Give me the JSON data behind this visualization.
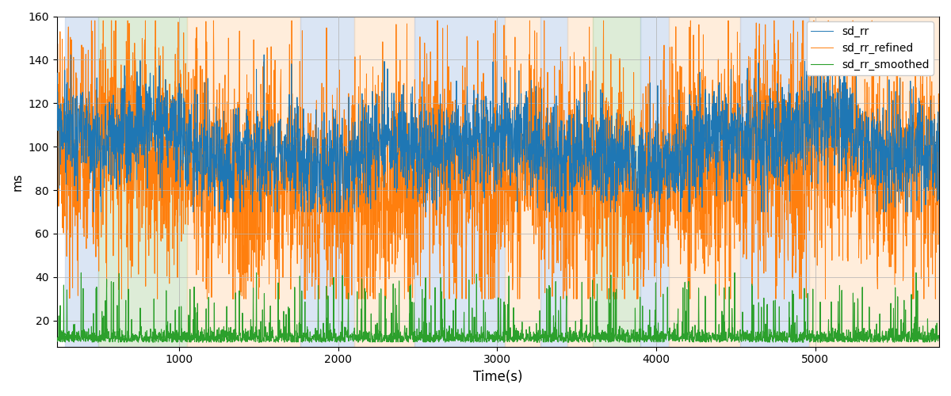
{
  "title": "",
  "xlabel": "Time(s)",
  "ylabel": "ms",
  "ylim": [
    8,
    160
  ],
  "xlim": [
    230,
    5780
  ],
  "line_colors": {
    "sd_rr": "#1f77b4",
    "sd_rr_refined": "#ff7f0e",
    "sd_rr_smoothed": "#2ca02c"
  },
  "legend_labels": [
    "sd_rr",
    "sd_rr_refined",
    "sd_rr_smoothed"
  ],
  "bg_regions": [
    {
      "xstart": 280,
      "xend": 490,
      "color": "#aec6e8"
    },
    {
      "xstart": 490,
      "xend": 1050,
      "color": "#b5d5a8"
    },
    {
      "xstart": 1050,
      "xend": 1760,
      "color": "#ffd9b0"
    },
    {
      "xstart": 1760,
      "xend": 2100,
      "color": "#aec6e8"
    },
    {
      "xstart": 2100,
      "xend": 2480,
      "color": "#ffd9b0"
    },
    {
      "xstart": 2480,
      "xend": 3050,
      "color": "#aec6e8"
    },
    {
      "xstart": 3050,
      "xend": 3270,
      "color": "#ffd9b0"
    },
    {
      "xstart": 3270,
      "xend": 3440,
      "color": "#aec6e8"
    },
    {
      "xstart": 3440,
      "xend": 3600,
      "color": "#ffd9b0"
    },
    {
      "xstart": 3600,
      "xend": 3900,
      "color": "#b5d5a8"
    },
    {
      "xstart": 3900,
      "xend": 4080,
      "color": "#aec6e8"
    },
    {
      "xstart": 4080,
      "xend": 4530,
      "color": "#ffd9b0"
    },
    {
      "xstart": 4530,
      "xend": 4960,
      "color": "#aec6e8"
    },
    {
      "xstart": 4960,
      "xend": 5780,
      "color": "#ffd9b0"
    }
  ],
  "bg_alpha": 0.45,
  "grid_color": "#b0b0b0",
  "yticks": [
    20,
    40,
    60,
    80,
    100,
    120,
    140,
    160
  ],
  "xticks": [
    1000,
    2000,
    3000,
    4000,
    5000
  ],
  "n_points": 3600,
  "seed": 99
}
